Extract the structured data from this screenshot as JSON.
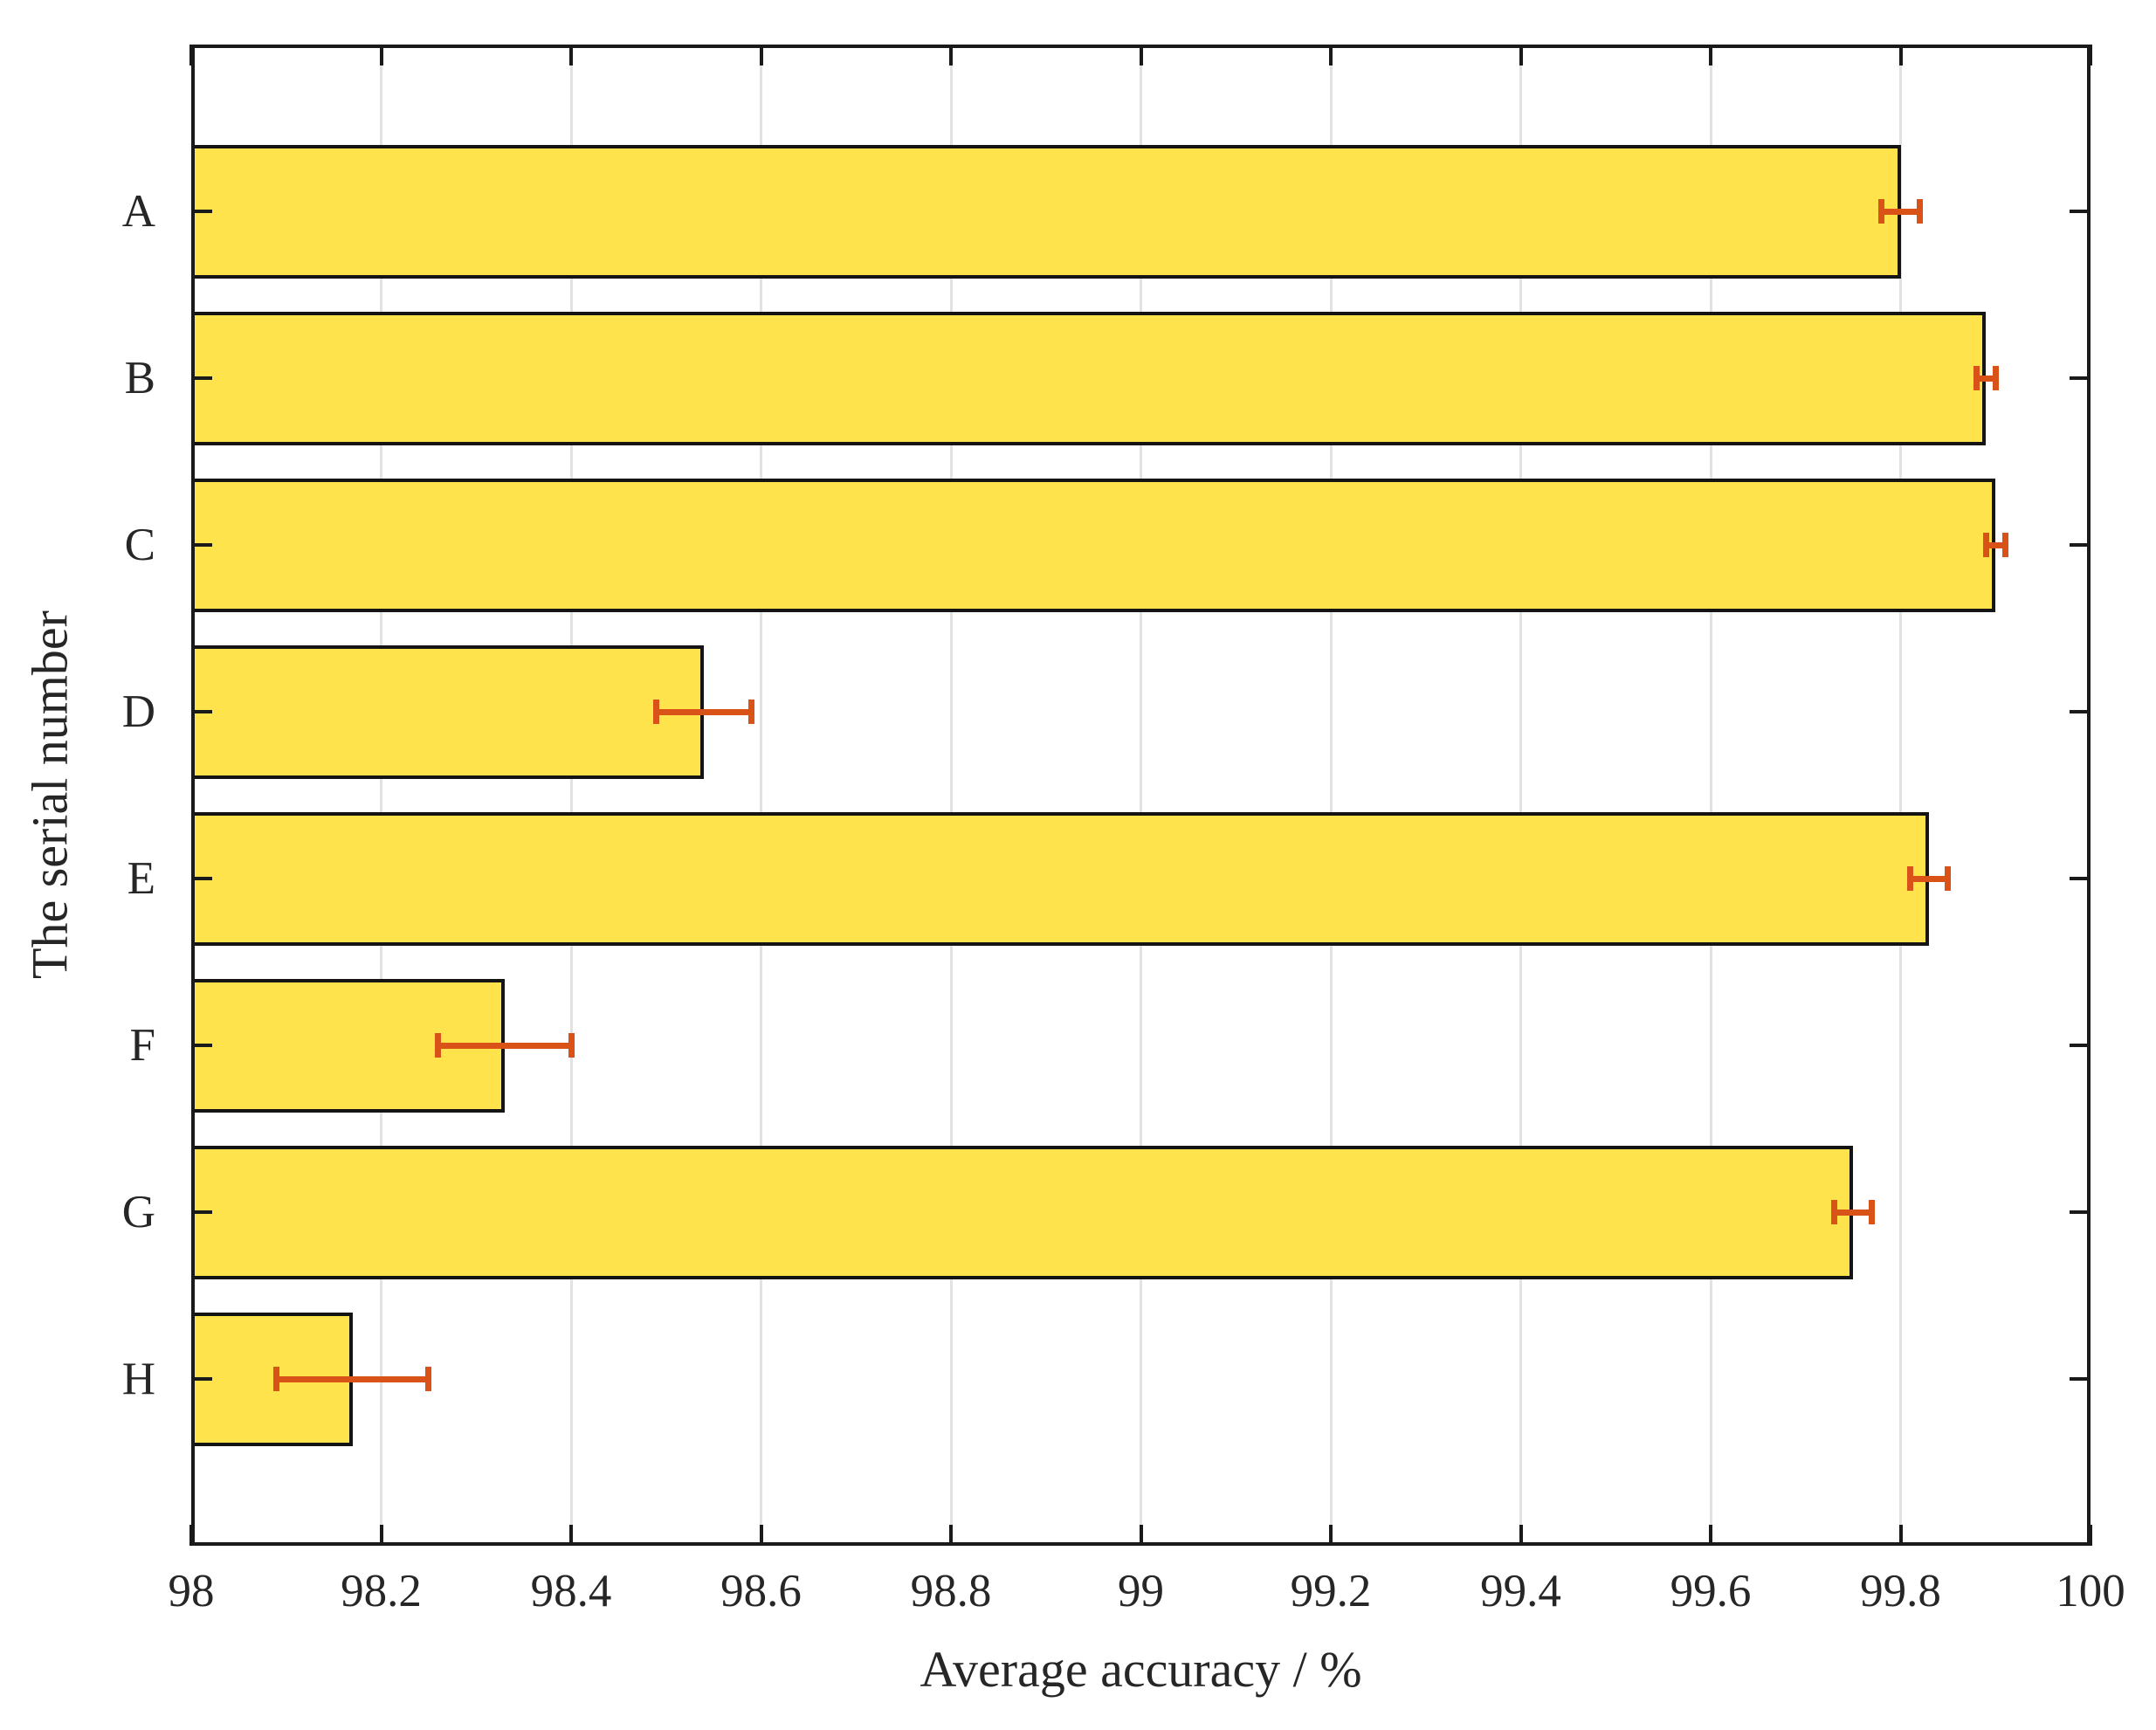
{
  "figure": {
    "background": "#ffffff"
  },
  "chart_data": {
    "type": "bar",
    "orientation": "horizontal",
    "title": "",
    "xlabel": "Average accuracy / %",
    "ylabel": "The serial number",
    "categories": [
      "A",
      "B",
      "C",
      "D",
      "E",
      "F",
      "G",
      "H"
    ],
    "series": [
      {
        "name": "Average accuracy",
        "values": [
          99.8,
          99.89,
          99.9,
          98.54,
          99.83,
          98.33,
          99.75,
          98.17
        ],
        "errors": [
          0.02,
          0.01,
          0.01,
          0.05,
          0.02,
          0.07,
          0.02,
          0.08
        ]
      }
    ],
    "xlim": [
      98,
      100
    ],
    "xticks": [
      98,
      98.2,
      98.4,
      98.6,
      98.8,
      99,
      99.2,
      99.4,
      99.6,
      99.8,
      100
    ],
    "xtick_labels": [
      "98",
      "98.2",
      "98.4",
      "98.6",
      "98.8",
      "99",
      "99.2",
      "99.4",
      "99.6",
      "99.8",
      "100"
    ],
    "grid": "vertical",
    "legend": null,
    "bar_width_fraction": 0.8,
    "colors": {
      "bar_fill": "#FFE34D",
      "bar_edge": "#141414",
      "error_bar": "#D95319",
      "axis": "#1a1a1a",
      "grid": "#e2e2e2",
      "text": "#262626"
    }
  }
}
